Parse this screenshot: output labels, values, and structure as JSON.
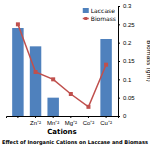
{
  "chart_data": {
    "type": "bar",
    "title": "Effect of Inorganic Cations on Laccase and Biomass",
    "categories": [
      null,
      "Zn⁺²",
      "Mn⁺²",
      "Mg⁺²",
      "Co⁺²",
      "Cu⁺²"
    ],
    "x_label": "Cations",
    "y_label": "Biomass (gm)",
    "ylim": [
      0,
      0.3
    ],
    "yticks": [
      0,
      0.05,
      0.1,
      0.15,
      0.2,
      0.25,
      0.3
    ],
    "legend": "top-right",
    "series": [
      {
        "name": "Laccase",
        "type": "bar",
        "color": "#4f81bd",
        "values": [
          0.24,
          0.19,
          0.05,
          0,
          0,
          0.21
        ]
      },
      {
        "name": "Biomass",
        "type": "line",
        "color": "#c0504d",
        "marker": "square",
        "values": [
          0.25,
          0.12,
          0.1,
          0.06,
          0.025,
          0.14
        ]
      }
    ]
  }
}
